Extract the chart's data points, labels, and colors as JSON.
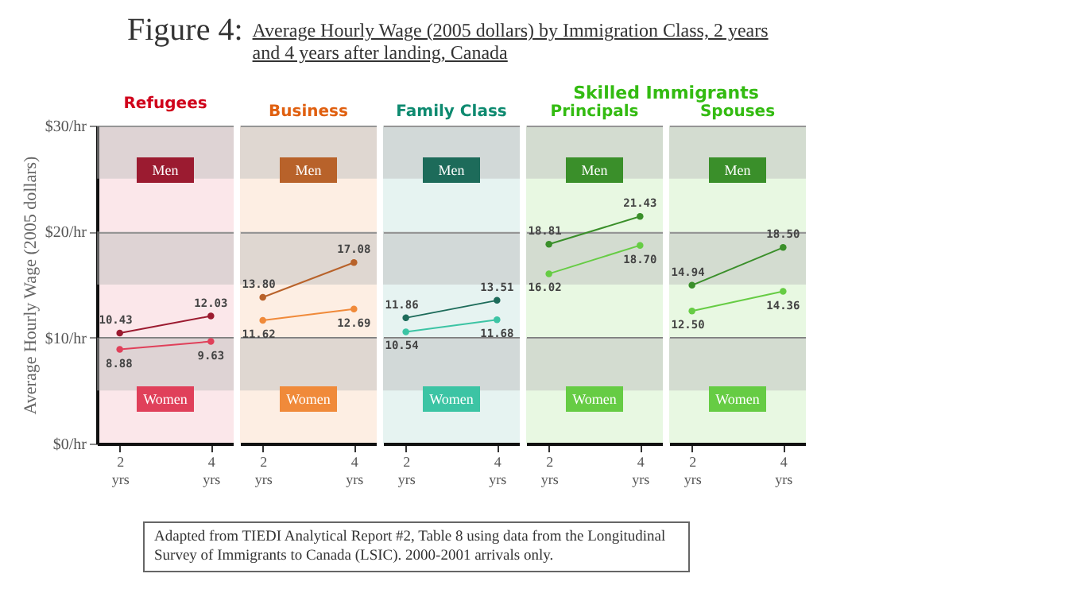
{
  "chart_data": [
    {
      "type": "other",
      "title": "Figure 4:",
      "subtitle": "Average Hourly Wage (2005 dollars) by Immigration Class, 2 years and 4 years after landing, Canada",
      "annotations": [
        "Skilled Immigrants",
        "Adapted from TIEDI Analytical Report #2, Table 8 using data from the Longitudinal Survey of Immigrants to Canada (LSIC).  2000-2001 arrivals only."
      ]
    },
    {
      "type": "line",
      "title": "Refugees",
      "ylabel": "Average Hourly Wage (2005 dollars)",
      "categories": [
        "2 yrs",
        "4 yrs"
      ],
      "ylim": [
        0,
        30
      ],
      "yticks": [
        {
          "value": 0,
          "label": "$0/hr"
        },
        {
          "value": 10,
          "label": "$10/hr"
        },
        {
          "value": 20,
          "label": "$20/hr"
        },
        {
          "value": 30,
          "label": "$30/hr"
        }
      ],
      "grid": "y",
      "marker": "circle",
      "bands": [
        {
          "axis": "y",
          "from": 5,
          "to": 10,
          "color": "#bbbbbb"
        },
        {
          "axis": "y",
          "from": 15,
          "to": 20,
          "color": "#bbbbbb"
        },
        {
          "axis": "y",
          "from": 25,
          "to": 30,
          "color": "#bbbbbb"
        }
      ],
      "series": [
        {
          "name": "Men",
          "color": "#9b1b30",
          "values": [
            10.43,
            12.03
          ],
          "value_labels": [
            "10.43",
            "12.03"
          ]
        },
        {
          "name": "Women",
          "color": "#e0405a",
          "values": [
            8.88,
            9.63
          ],
          "value_labels": [
            "8.88",
            "9.63"
          ]
        }
      ]
    },
    {
      "type": "line",
      "title": "Business",
      "categories": [
        "2 yrs",
        "4 yrs"
      ],
      "ylim": [
        0,
        30
      ],
      "yticks": [
        0,
        10,
        20,
        30
      ],
      "tick_labels": "x",
      "grid": "y",
      "marker": "circle",
      "bands": [
        {
          "axis": "y",
          "from": 5,
          "to": 10,
          "color": "#bbbbbb"
        },
        {
          "axis": "y",
          "from": 15,
          "to": 20,
          "color": "#bbbbbb"
        },
        {
          "axis": "y",
          "from": 25,
          "to": 30,
          "color": "#bbbbbb"
        }
      ],
      "series": [
        {
          "name": "Men",
          "color": "#b8622a",
          "values": [
            13.8,
            17.08
          ],
          "value_labels": [
            "13.80",
            "17.08"
          ]
        },
        {
          "name": "Women",
          "color": "#f08a3a",
          "values": [
            11.62,
            12.69
          ],
          "value_labels": [
            "11.62",
            "12.69"
          ]
        }
      ]
    },
    {
      "type": "line",
      "title": "Family Class",
      "categories": [
        "2 yrs",
        "4 yrs"
      ],
      "ylim": [
        0,
        30
      ],
      "yticks": [
        0,
        10,
        20,
        30
      ],
      "tick_labels": "x",
      "grid": "y",
      "marker": "circle",
      "bands": [
        {
          "axis": "y",
          "from": 5,
          "to": 10,
          "color": "#bbbbbb"
        },
        {
          "axis": "y",
          "from": 15,
          "to": 20,
          "color": "#bbbbbb"
        },
        {
          "axis": "y",
          "from": 25,
          "to": 30,
          "color": "#bbbbbb"
        }
      ],
      "series": [
        {
          "name": "Men",
          "color": "#1d6b5a",
          "values": [
            11.86,
            13.51
          ],
          "value_labels": [
            "11.86",
            "13.51"
          ]
        },
        {
          "name": "Women",
          "color": "#3cc4a4",
          "values": [
            10.54,
            11.68
          ],
          "value_labels": [
            "10.54",
            "11.68"
          ]
        }
      ]
    },
    {
      "type": "line",
      "title": "Principals",
      "categories": [
        "2 yrs",
        "4 yrs"
      ],
      "ylim": [
        0,
        30
      ],
      "yticks": [
        0,
        10,
        20,
        30
      ],
      "tick_labels": "x",
      "grid": "y",
      "marker": "circle",
      "bands": [
        {
          "axis": "y",
          "from": 5,
          "to": 10,
          "color": "#bbbbbb"
        },
        {
          "axis": "y",
          "from": 15,
          "to": 20,
          "color": "#bbbbbb"
        },
        {
          "axis": "y",
          "from": 25,
          "to": 30,
          "color": "#bbbbbb"
        }
      ],
      "series": [
        {
          "name": "Men",
          "color": "#3a8f2a",
          "values": [
            18.81,
            21.43
          ],
          "value_labels": [
            "18.81",
            "21.43"
          ]
        },
        {
          "name": "Women",
          "color": "#66cc44",
          "values": [
            16.02,
            18.7
          ],
          "value_labels": [
            "16.02",
            "18.70"
          ]
        }
      ]
    },
    {
      "type": "line",
      "title": "Spouses",
      "categories": [
        "2 yrs",
        "4 yrs"
      ],
      "ylim": [
        0,
        30
      ],
      "yticks": [
        0,
        10,
        20,
        30
      ],
      "tick_labels": "x",
      "grid": "y",
      "marker": "circle",
      "bands": [
        {
          "axis": "y",
          "from": 5,
          "to": 10,
          "color": "#bbbbbb"
        },
        {
          "axis": "y",
          "from": 15,
          "to": 20,
          "color": "#bbbbbb"
        },
        {
          "axis": "y",
          "from": 25,
          "to": 30,
          "color": "#bbbbbb"
        }
      ],
      "series": [
        {
          "name": "Men",
          "color": "#3a8f2a",
          "values": [
            14.94,
            18.5
          ],
          "value_labels": [
            "14.94",
            "18.50"
          ]
        },
        {
          "name": "Women",
          "color": "#66cc44",
          "values": [
            12.5,
            14.36
          ],
          "value_labels": [
            "12.50",
            "14.36"
          ]
        }
      ]
    }
  ]
}
